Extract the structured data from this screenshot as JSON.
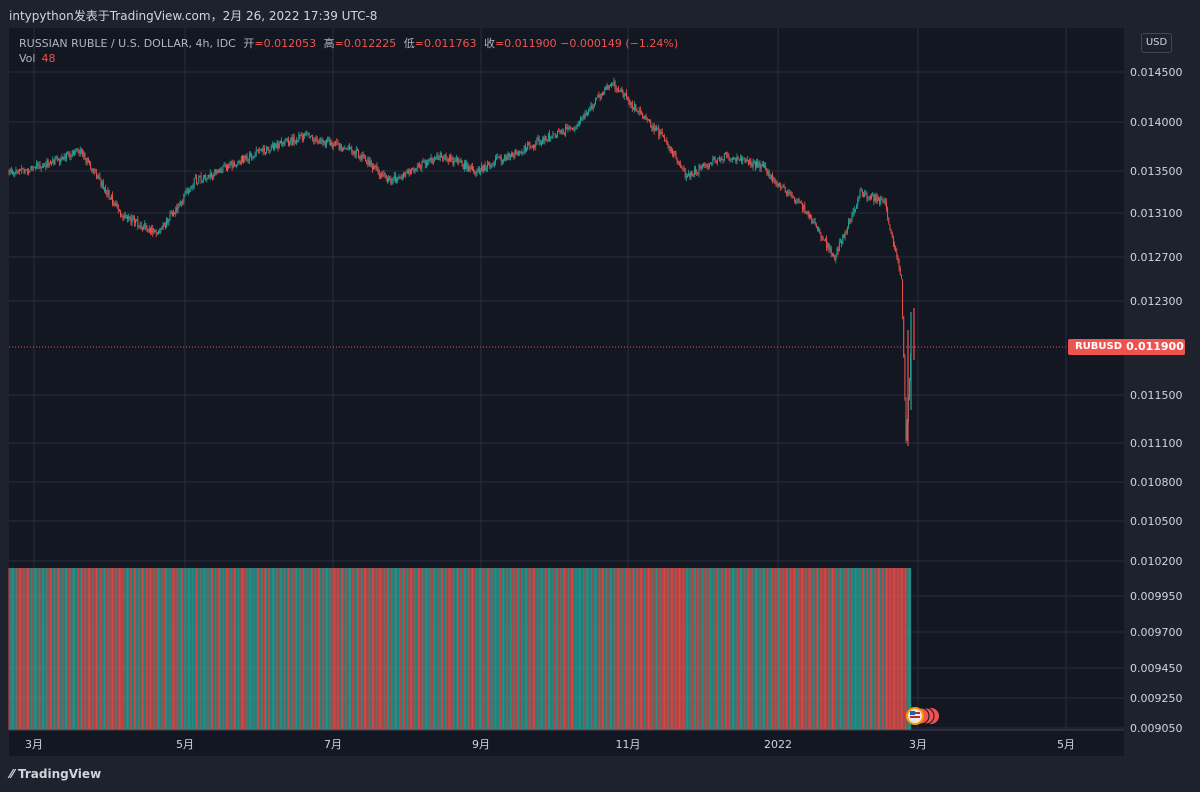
{
  "header": {
    "title": "intypython发表于TradingView.com，2月 26, 2022 17:39 UTC-8"
  },
  "legend": {
    "symbol": "RUSSIAN RUBLE / U.S. DOLLAR, 4h, IDC",
    "open_label": "开",
    "open": "=0.012053",
    "high_label": "高",
    "high": "=0.012225",
    "low_label": "低",
    "low": "=0.011763",
    "close_label": "收",
    "close": "=0.011900",
    "change": "−0.000149 (−1.24%)",
    "vol_label": "Vol",
    "vol": "48"
  },
  "currency_button": "USD",
  "last_price": {
    "symbol": "RUBUSD",
    "value": "0.011900"
  },
  "footer": {
    "logo_text": "TradingView"
  },
  "colors": {
    "up": "#26a69a",
    "down": "#ef5350",
    "background": "#131722",
    "grid": "#2a2e39"
  },
  "chart_data": {
    "type": "candlestick",
    "x_ticks": [
      "3月",
      "5月",
      "7月",
      "9月",
      "11月",
      "2022",
      "3月",
      "5月"
    ],
    "y_ticks": [
      "0.014500",
      "0.014000",
      "0.013500",
      "0.013100",
      "0.012700",
      "0.012300",
      "0.011500",
      "0.011100",
      "0.010800",
      "0.010500",
      "0.010200",
      "0.009950",
      "0.009700",
      "0.009450",
      "0.009250",
      "0.009050"
    ],
    "y_scale": "log",
    "series": [
      {
        "date": "2021-02-26",
        "close": 0.0135
      },
      {
        "date": "2021-03-20",
        "close": 0.0137
      },
      {
        "date": "2021-04-05",
        "close": 0.0131
      },
      {
        "date": "2021-04-20",
        "close": 0.0129
      },
      {
        "date": "2021-05-05",
        "close": 0.0134
      },
      {
        "date": "2021-06-01",
        "close": 0.0137
      },
      {
        "date": "2021-06-20",
        "close": 0.01385
      },
      {
        "date": "2021-07-10",
        "close": 0.0137
      },
      {
        "date": "2021-07-25",
        "close": 0.0134
      },
      {
        "date": "2021-08-15",
        "close": 0.01365
      },
      {
        "date": "2021-08-30",
        "close": 0.0135
      },
      {
        "date": "2021-09-20",
        "close": 0.01375
      },
      {
        "date": "2021-10-10",
        "close": 0.01395
      },
      {
        "date": "2021-10-25",
        "close": 0.0144
      },
      {
        "date": "2021-11-15",
        "close": 0.01385
      },
      {
        "date": "2021-11-25",
        "close": 0.01345
      },
      {
        "date": "2021-12-10",
        "close": 0.01365
      },
      {
        "date": "2021-12-25",
        "close": 0.01355
      },
      {
        "date": "2022-01-10",
        "close": 0.0132
      },
      {
        "date": "2022-01-25",
        "close": 0.0127
      },
      {
        "date": "2022-02-05",
        "close": 0.0133
      },
      {
        "date": "2022-02-15",
        "close": 0.0132
      },
      {
        "date": "2022-02-22",
        "close": 0.0125
      },
      {
        "date": "2022-02-24",
        "close": 0.0111
      },
      {
        "date": "2022-02-26",
        "close": 0.0119
      }
    ]
  }
}
